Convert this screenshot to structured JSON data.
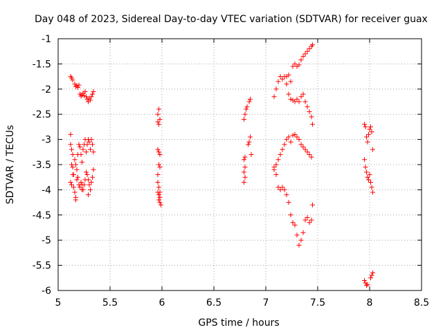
{
  "chart_data": {
    "type": "scatter",
    "title": "Day 048 of 2023, Sidereal Day-to-day VTEC variation (SDTVAR) for receiver guax",
    "xlabel": "GPS time / hours",
    "ylabel": "SDTVAR / TECUs",
    "xlim": [
      5,
      8.5
    ],
    "ylim": [
      -6,
      -1
    ],
    "xticks": [
      5,
      5.5,
      6,
      6.5,
      7,
      7.5,
      8,
      8.5
    ],
    "xtick_labels": [
      "5",
      "5.5",
      "6",
      "6.5",
      "7",
      "7.5",
      "8",
      "8.5"
    ],
    "yticks": [
      -1,
      -1.5,
      -2,
      -2.5,
      -3,
      -3.5,
      -4,
      -4.5,
      -5,
      -5.5,
      -6
    ],
    "ytick_labels": [
      "-1",
      "-1.5",
      "-2",
      "-2.5",
      "-3",
      "-3.5",
      "-4",
      "-4.5",
      "-5",
      "-5.5",
      "-6"
    ],
    "grid": true,
    "marker": "+",
    "color": "#ff0000",
    "series": [
      {
        "name": "SDTVAR",
        "segments": [
          [
            [
              5.12,
              -1.75
            ],
            [
              5.13,
              -1.78
            ],
            [
              5.14,
              -1.82
            ],
            [
              5.16,
              -1.9
            ],
            [
              5.17,
              -1.95
            ],
            [
              5.18,
              -1.93
            ],
            [
              5.19,
              -1.97
            ],
            [
              5.2,
              -1.92
            ],
            [
              5.21,
              -2.1
            ],
            [
              5.22,
              -2.14
            ],
            [
              5.23,
              -2.12
            ],
            [
              5.24,
              -2.08
            ],
            [
              5.25,
              -2.13
            ],
            [
              5.26,
              -2.05
            ],
            [
              5.27,
              -2.15
            ],
            [
              5.28,
              -2.2
            ],
            [
              5.29,
              -2.25
            ],
            [
              5.3,
              -2.18
            ],
            [
              5.31,
              -2.22
            ],
            [
              5.32,
              -2.15
            ],
            [
              5.33,
              -2.1
            ],
            [
              5.34,
              -2.05
            ]
          ],
          [
            [
              5.12,
              -2.9
            ],
            [
              5.12,
              -3.1
            ],
            [
              5.13,
              -3.2
            ],
            [
              5.13,
              -3.5
            ],
            [
              5.14,
              -3.55
            ],
            [
              5.14,
              -3.3
            ],
            [
              5.15,
              -3.7
            ],
            [
              5.16,
              -3.4
            ],
            [
              5.17,
              -3.5
            ],
            [
              5.18,
              -3.6
            ],
            [
              5.19,
              -3.3
            ],
            [
              5.2,
              -3.1
            ],
            [
              5.21,
              -3.15
            ],
            [
              5.22,
              -3.3
            ],
            [
              5.23,
              -3.45
            ],
            [
              5.24,
              -3.2
            ],
            [
              5.25,
              -3.1
            ],
            [
              5.26,
              -3.0
            ],
            [
              5.27,
              -3.25
            ],
            [
              5.28,
              -3.1
            ],
            [
              5.29,
              -3.0
            ],
            [
              5.3,
              -3.05
            ],
            [
              5.31,
              -3.2
            ],
            [
              5.32,
              -3.0
            ],
            [
              5.33,
              -3.1
            ],
            [
              5.34,
              -3.25
            ]
          ],
          [
            [
              5.12,
              -3.85
            ],
            [
              5.13,
              -3.9
            ],
            [
              5.14,
              -3.7
            ],
            [
              5.15,
              -3.95
            ],
            [
              5.16,
              -4.05
            ],
            [
              5.17,
              -4.15
            ],
            [
              5.18,
              -3.8
            ],
            [
              5.19,
              -3.75
            ],
            [
              5.2,
              -3.9
            ],
            [
              5.21,
              -3.95
            ],
            [
              5.22,
              -3.85
            ],
            [
              5.23,
              -3.9
            ],
            [
              5.24,
              -4.0
            ],
            [
              5.25,
              -3.9
            ],
            [
              5.26,
              -3.8
            ],
            [
              5.27,
              -3.65
            ],
            [
              5.28,
              -3.7
            ],
            [
              5.29,
              -3.8
            ],
            [
              5.3,
              -3.9
            ],
            [
              5.31,
              -4.0
            ],
            [
              5.32,
              -3.85
            ],
            [
              5.33,
              -3.75
            ],
            [
              5.34,
              -3.6
            ],
            [
              5.17,
              -4.2
            ],
            [
              5.23,
              -4.0
            ],
            [
              5.29,
              -4.1
            ]
          ],
          [
            [
              5.96,
              -2.5
            ],
            [
              5.97,
              -2.4
            ],
            [
              5.98,
              -2.6
            ],
            [
              5.96,
              -2.65
            ],
            [
              5.97,
              -2.7
            ],
            [
              5.96,
              -3.2
            ],
            [
              5.97,
              -3.25
            ],
            [
              5.98,
              -3.3
            ],
            [
              5.97,
              -3.5
            ],
            [
              5.98,
              -3.55
            ],
            [
              5.96,
              -3.7
            ],
            [
              5.96,
              -3.85
            ],
            [
              5.97,
              -3.95
            ],
            [
              5.96,
              -4.05
            ],
            [
              5.97,
              -4.1
            ],
            [
              5.98,
              -4.15
            ],
            [
              5.97,
              -4.2
            ],
            [
              5.98,
              -4.25
            ],
            [
              5.99,
              -4.3
            ],
            [
              5.98,
              -4.05
            ]
          ],
          [
            [
              6.79,
              -2.6
            ],
            [
              6.8,
              -2.5
            ],
            [
              6.81,
              -2.4
            ],
            [
              6.82,
              -2.35
            ],
            [
              6.84,
              -2.25
            ],
            [
              6.85,
              -2.2
            ],
            [
              6.79,
              -3.4
            ],
            [
              6.8,
              -3.35
            ],
            [
              6.83,
              -3.1
            ],
            [
              6.84,
              -3.05
            ],
            [
              6.85,
              -2.95
            ],
            [
              6.8,
              -3.55
            ],
            [
              6.79,
              -3.65
            ],
            [
              6.8,
              -3.75
            ],
            [
              6.79,
              -3.85
            ],
            [
              6.86,
              -3.3
            ]
          ],
          [
            [
              7.08,
              -2.15
            ],
            [
              7.1,
              -2.0
            ],
            [
              7.12,
              -1.85
            ],
            [
              7.14,
              -1.75
            ],
            [
              7.16,
              -1.8
            ],
            [
              7.18,
              -1.75
            ],
            [
              7.2,
              -1.9
            ],
            [
              7.22,
              -2.1
            ],
            [
              7.24,
              -2.2
            ],
            [
              7.26,
              -2.22
            ],
            [
              7.28,
              -2.25
            ],
            [
              7.3,
              -2.2
            ],
            [
              7.32,
              -2.25
            ],
            [
              7.34,
              -2.15
            ],
            [
              7.36,
              -2.1
            ],
            [
              7.38,
              -2.25
            ],
            [
              7.4,
              -2.35
            ],
            [
              7.42,
              -2.45
            ],
            [
              7.44,
              -2.55
            ],
            [
              7.45,
              -2.7
            ]
          ],
          [
            [
              7.2,
              -1.75
            ],
            [
              7.22,
              -1.72
            ],
            [
              7.24,
              -1.85
            ],
            [
              7.26,
              -1.55
            ],
            [
              7.28,
              -1.5
            ],
            [
              7.3,
              -1.55
            ],
            [
              7.32,
              -1.52
            ],
            [
              7.34,
              -1.42
            ],
            [
              7.36,
              -1.35
            ],
            [
              7.38,
              -1.3
            ],
            [
              7.4,
              -1.25
            ],
            [
              7.42,
              -1.2
            ],
            [
              7.44,
              -1.15
            ],
            [
              7.45,
              -1.12
            ]
          ],
          [
            [
              7.08,
              -3.6
            ],
            [
              7.1,
              -3.5
            ],
            [
              7.12,
              -3.4
            ],
            [
              7.14,
              -3.3
            ],
            [
              7.16,
              -3.2
            ],
            [
              7.18,
              -3.1
            ],
            [
              7.2,
              -3.0
            ],
            [
              7.22,
              -2.95
            ],
            [
              7.24,
              -3.05
            ],
            [
              7.26,
              -2.92
            ],
            [
              7.28,
              -2.9
            ],
            [
              7.3,
              -2.95
            ],
            [
              7.32,
              -3.0
            ],
            [
              7.34,
              -3.1
            ],
            [
              7.36,
              -3.15
            ],
            [
              7.38,
              -3.2
            ],
            [
              7.4,
              -3.25
            ],
            [
              7.42,
              -3.3
            ],
            [
              7.44,
              -3.35
            ]
          ],
          [
            [
              7.08,
              -3.55
            ],
            [
              7.1,
              -3.7
            ],
            [
              7.12,
              -3.95
            ],
            [
              7.14,
              -4.0
            ],
            [
              7.16,
              -3.95
            ],
            [
              7.18,
              -4.0
            ],
            [
              7.2,
              -4.1
            ],
            [
              7.22,
              -4.25
            ],
            [
              7.24,
              -4.5
            ],
            [
              7.26,
              -4.65
            ],
            [
              7.28,
              -4.7
            ],
            [
              7.3,
              -4.9
            ],
            [
              7.32,
              -5.1
            ],
            [
              7.34,
              -5.0
            ],
            [
              7.36,
              -4.85
            ],
            [
              7.38,
              -4.6
            ],
            [
              7.4,
              -4.55
            ],
            [
              7.42,
              -4.65
            ],
            [
              7.44,
              -4.6
            ],
            [
              7.45,
              -4.3
            ]
          ],
          [
            [
              7.95,
              -2.7
            ],
            [
              7.96,
              -2.75
            ],
            [
              7.97,
              -2.95
            ],
            [
              7.98,
              -3.05
            ],
            [
              7.99,
              -2.9
            ],
            [
              8.0,
              -2.8
            ],
            [
              8.01,
              -2.75
            ],
            [
              8.02,
              -2.85
            ],
            [
              8.03,
              -3.2
            ],
            [
              7.95,
              -3.4
            ],
            [
              7.96,
              -3.55
            ],
            [
              7.97,
              -3.65
            ],
            [
              7.98,
              -3.75
            ],
            [
              7.99,
              -3.8
            ],
            [
              8.0,
              -3.7
            ],
            [
              8.01,
              -3.85
            ],
            [
              8.02,
              -3.95
            ],
            [
              8.03,
              -4.05
            ],
            [
              7.95,
              -5.8
            ],
            [
              7.96,
              -5.85
            ],
            [
              7.97,
              -5.9
            ],
            [
              7.98,
              -5.88
            ],
            [
              8.01,
              -5.75
            ],
            [
              8.02,
              -5.7
            ],
            [
              8.03,
              -5.65
            ]
          ]
        ]
      }
    ]
  }
}
